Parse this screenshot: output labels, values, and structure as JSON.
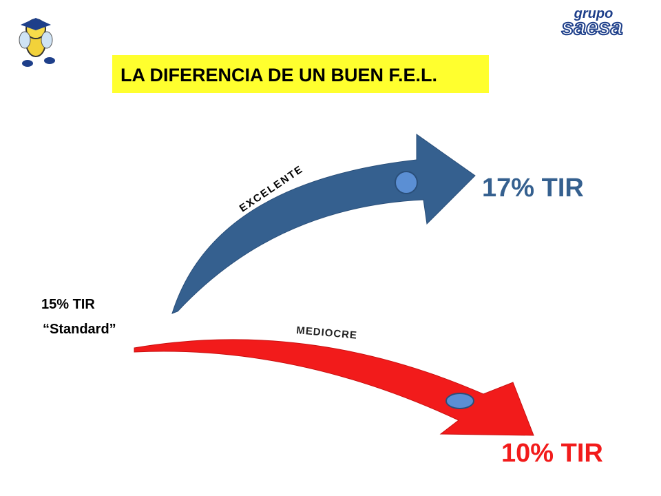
{
  "header": {
    "title": "LA DIFERENCIA DE UN BUEN F.E.L.",
    "logo_top": "grupo",
    "logo_main": "saesa"
  },
  "start": {
    "line1": "15% TIR",
    "line2": "“Standard”"
  },
  "paths": [
    {
      "label": "EXCELENTE",
      "result": "17% TIR"
    },
    {
      "label": "MEDIOCRE",
      "result": "10% TIR"
    }
  ]
}
